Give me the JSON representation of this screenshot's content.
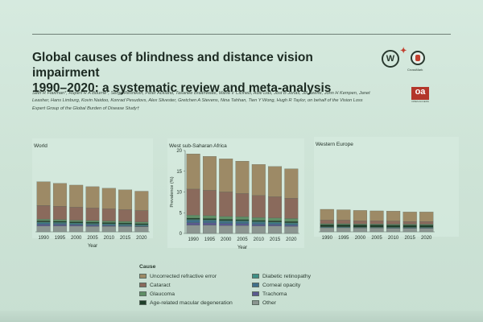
{
  "header": {
    "title_line1": "Global causes of blindness and distance vision impairment",
    "title_line2": "1990–2020: a systematic review and meta-analysis",
    "authors": "Seth R Flaxman*, Rupert R A Bourne*, Serge Resnikoff, Peter Ackland, Tasanee Braithwaite, Maria V Cicinelli, Aditi Das, Jost B Jonas, Jill Keeffe, John H Kempen, Janet Leasher, Hans Limburg, Kovin Naidoo, Konrad Pesudovs, Alex Silvester, Gretchen A Stevens, Nina Tahhan, Tien Y Wong, Hugh R Taylor, on behalf of the Vision Loss Expert Group of the Global Burden of Disease Study†",
    "crossmark_label": "CrossMark",
    "oa_label": "oa",
    "oa_sublabel": "OPEN ACCESS"
  },
  "legend": {
    "title": "Cause",
    "items": [
      {
        "label": "Uncorrected refractive error",
        "color": "#9d8a66"
      },
      {
        "label": "Cataract",
        "color": "#8a6a5c"
      },
      {
        "label": "Glaucoma",
        "color": "#5f8f66"
      },
      {
        "label": "Age-related macular degeneration",
        "color": "#1f3f2a"
      },
      {
        "label": "Diabetic retinopathy",
        "color": "#3f8f86"
      },
      {
        "label": "Corneal opacity",
        "color": "#3f6f8a"
      },
      {
        "label": "Trachoma",
        "color": "#5a5a8f"
      },
      {
        "label": "Other",
        "color": "#8c9691"
      }
    ]
  },
  "chart_data": [
    {
      "type": "bar",
      "stacked": true,
      "title": "World",
      "xlabel": "Year",
      "ylabel": "",
      "categories": [
        "1990",
        "1995",
        "2000",
        "2005",
        "2010",
        "2015",
        "2020"
      ],
      "ylim": [
        0,
        20
      ],
      "series": [
        {
          "name": "Uncorrected refractive error",
          "values": [
            6.0,
            5.8,
            5.6,
            5.4,
            5.2,
            5.0,
            4.9
          ]
        },
        {
          "name": "Cataract",
          "values": [
            3.5,
            3.4,
            3.3,
            3.2,
            3.1,
            3.0,
            2.9
          ]
        },
        {
          "name": "Glaucoma",
          "values": [
            0.4,
            0.4,
            0.4,
            0.4,
            0.4,
            0.4,
            0.4
          ]
        },
        {
          "name": "Age-related macular degeneration",
          "values": [
            0.3,
            0.3,
            0.3,
            0.3,
            0.3,
            0.3,
            0.3
          ]
        },
        {
          "name": "Diabetic retinopathy",
          "values": [
            0.2,
            0.2,
            0.2,
            0.2,
            0.2,
            0.2,
            0.2
          ]
        },
        {
          "name": "Corneal opacity",
          "values": [
            0.4,
            0.35,
            0.3,
            0.3,
            0.25,
            0.25,
            0.2
          ]
        },
        {
          "name": "Trachoma",
          "values": [
            0.4,
            0.35,
            0.3,
            0.25,
            0.2,
            0.15,
            0.1
          ]
        },
        {
          "name": "Other",
          "values": [
            1.5,
            1.5,
            1.45,
            1.4,
            1.4,
            1.35,
            1.3
          ]
        }
      ]
    },
    {
      "type": "bar",
      "stacked": true,
      "title": "West sub-Saharan Africa",
      "xlabel": "Year",
      "ylabel": "Prevalence (%)",
      "categories": [
        "1990",
        "1995",
        "2000",
        "2005",
        "2010",
        "2015",
        "2020"
      ],
      "ylim": [
        0,
        20
      ],
      "yticks": [
        0,
        5,
        10,
        15,
        20
      ],
      "series": [
        {
          "name": "Uncorrected refractive error",
          "values": [
            8.5,
            8.2,
            8.0,
            7.8,
            7.5,
            7.3,
            7.1
          ]
        },
        {
          "name": "Cataract",
          "values": [
            6.3,
            6.1,
            5.9,
            5.6,
            5.3,
            5.1,
            4.9
          ]
        },
        {
          "name": "Glaucoma",
          "values": [
            0.7,
            0.7,
            0.7,
            0.7,
            0.7,
            0.7,
            0.7
          ]
        },
        {
          "name": "Age-related macular degeneration",
          "values": [
            0.3,
            0.3,
            0.3,
            0.3,
            0.3,
            0.3,
            0.3
          ]
        },
        {
          "name": "Diabetic retinopathy",
          "values": [
            0.2,
            0.2,
            0.2,
            0.2,
            0.2,
            0.2,
            0.2
          ]
        },
        {
          "name": "Corneal opacity",
          "values": [
            0.6,
            0.55,
            0.5,
            0.5,
            0.45,
            0.4,
            0.4
          ]
        },
        {
          "name": "Trachoma",
          "values": [
            0.6,
            0.55,
            0.5,
            0.45,
            0.4,
            0.35,
            0.3
          ]
        },
        {
          "name": "Other",
          "values": [
            2.0,
            2.0,
            1.9,
            1.9,
            1.8,
            1.8,
            1.7
          ]
        }
      ]
    },
    {
      "type": "bar",
      "stacked": true,
      "title": "Western Europe",
      "xlabel": "",
      "ylabel": "",
      "categories": [
        "1990",
        "1995",
        "2000",
        "2005",
        "2010",
        "2015",
        "2020"
      ],
      "ylim": [
        0,
        20
      ],
      "series": [
        {
          "name": "Uncorrected refractive error",
          "values": [
            2.4,
            2.3,
            2.3,
            2.2,
            2.2,
            2.1,
            2.1
          ]
        },
        {
          "name": "Cataract",
          "values": [
            0.8,
            0.8,
            0.7,
            0.7,
            0.7,
            0.6,
            0.6
          ]
        },
        {
          "name": "Glaucoma",
          "values": [
            0.2,
            0.2,
            0.2,
            0.2,
            0.2,
            0.2,
            0.2
          ]
        },
        {
          "name": "Age-related macular degeneration",
          "values": [
            0.5,
            0.5,
            0.5,
            0.5,
            0.5,
            0.5,
            0.5
          ]
        },
        {
          "name": "Diabetic retinopathy",
          "values": [
            0.1,
            0.1,
            0.1,
            0.1,
            0.1,
            0.1,
            0.1
          ]
        },
        {
          "name": "Corneal opacity",
          "values": [
            0.1,
            0.1,
            0.1,
            0.1,
            0.1,
            0.1,
            0.1
          ]
        },
        {
          "name": "Trachoma",
          "values": [
            0.0,
            0.0,
            0.0,
            0.0,
            0.0,
            0.0,
            0.0
          ]
        },
        {
          "name": "Other",
          "values": [
            0.9,
            0.9,
            0.85,
            0.85,
            0.8,
            0.8,
            0.8
          ]
        }
      ]
    }
  ]
}
